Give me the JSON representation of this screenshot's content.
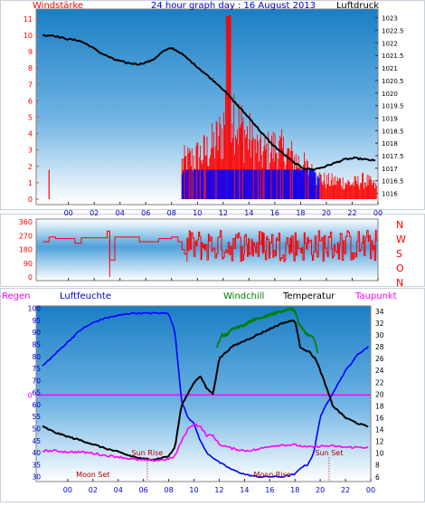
{
  "page": {
    "title": "24 hour graph day : 16 August 2013"
  },
  "colors": {
    "title_blue": "#0000cc",
    "red": "#ff0000",
    "blue": "#0000ff",
    "black": "#000000",
    "green": "#008000",
    "magenta": "#ff00ff",
    "moon_label": "#b00000",
    "plot_top": "#1a7ec4",
    "plot_bottom": "#ffffff",
    "frame": "#cfd8e3"
  },
  "chart_data": [
    {
      "type": "line",
      "title": "24 hour graph day : 16 August 2013",
      "left_axis_label": "Windstärke",
      "right_axis_label": "Luftdruck",
      "x_ticks": [
        "00",
        "02",
        "04",
        "06",
        "08",
        "10",
        "12",
        "14",
        "16",
        "18",
        "20",
        "22",
        "00"
      ],
      "x_range_hours": [
        -2.5,
        24
      ],
      "wind_ticks": [
        "0",
        "1",
        "2",
        "3",
        "4",
        "5",
        "6",
        "7",
        "8",
        "9",
        "10",
        "11"
      ],
      "wind_ylim": [
        0,
        11.6
      ],
      "pressure_ticks": [
        "1016",
        "1016.5",
        "1017",
        "1017.5",
        "1018",
        "1018.5",
        "1019",
        "1019.5",
        "1020",
        "1020.5",
        "1021",
        "1021.5",
        "1022",
        "1022.5",
        "1023"
      ],
      "pressure_ylim": [
        1015.55,
        1023.35
      ],
      "series": [
        {
          "key": "pressure",
          "color": "#000000",
          "x": [
            -2.0,
            -1.2,
            -0.5,
            0,
            0.8,
            1.6,
            2.5,
            3.5,
            4.5,
            5.5,
            6.5,
            7.3,
            8.0,
            8.7,
            9.4,
            10.2,
            11.0,
            11.8,
            12.6,
            13.4,
            14.2,
            15.0,
            15.8,
            16.6,
            17.4,
            18.2,
            19.0,
            19.8,
            20.6,
            21.4,
            22.2,
            23.0,
            23.8
          ],
          "y": [
            1022.3,
            1022.3,
            1022.2,
            1022.15,
            1022.1,
            1021.9,
            1021.6,
            1021.35,
            1021.2,
            1021.15,
            1021.3,
            1021.65,
            1021.8,
            1021.6,
            1021.3,
            1020.95,
            1020.6,
            1020.25,
            1019.8,
            1019.35,
            1018.9,
            1018.4,
            1017.95,
            1017.6,
            1017.25,
            1017.0,
            1016.95,
            1017.05,
            1017.2,
            1017.35,
            1017.4,
            1017.35,
            1017.3
          ]
        },
        {
          "key": "wind_spike",
          "color": "#ff0000",
          "x": [
            -1.5
          ],
          "y": [
            1.8
          ]
        }
      ],
      "red_bar_envelope": {
        "x": [
          8.8,
          10,
          11,
          12,
          12.4,
          13,
          14,
          15,
          16,
          17,
          18,
          19,
          20,
          21,
          22,
          23,
          23.9
        ],
        "y": [
          3.2,
          3.8,
          4.5,
          6,
          11,
          7,
          5.5,
          4,
          4.6,
          4,
          3.2,
          2.2,
          1.6,
          1.6,
          1.4,
          1.7,
          1.1
        ]
      },
      "blue_bar_envelope": {
        "x": [
          8.8,
          9,
          19,
          19.5,
          20,
          22.5,
          23.9
        ],
        "y": [
          1.5,
          1.8,
          1.8,
          1.2,
          0,
          0,
          0
        ]
      }
    },
    {
      "type": "line",
      "left_ticks": [
        "0",
        "90",
        "180",
        "270",
        "360"
      ],
      "ylim": [
        0,
        360
      ],
      "right_labels": [
        "N",
        "W",
        "S",
        "O",
        "N"
      ],
      "series": [
        {
          "key": "wind_direction",
          "color": "#ff0000",
          "x": [
            -2.0,
            -1.5,
            -1.0,
            0.0,
            0.5,
            1.0,
            1.5,
            2.5,
            3.0,
            3.2,
            3.6,
            4.5,
            5.5,
            6.5,
            7.0,
            7.5,
            8.0,
            8.5,
            8.8,
            9.0,
            9.2
          ],
          "y": [
            230,
            260,
            250,
            250,
            220,
            255,
            255,
            255,
            300,
            110,
            260,
            260,
            230,
            230,
            250,
            250,
            260,
            230,
            180,
            150,
            100
          ]
        }
      ]
    },
    {
      "type": "line",
      "labels": {
        "regen": "Regen",
        "luftfeuchte": "Luftfeuchte",
        "windchill": "Windchill",
        "temperatur": "Temperatur",
        "taupunkt": "Taupunkt"
      },
      "left_ticks": [
        "30",
        "35",
        "40",
        "45",
        "50",
        "55",
        "60",
        "65",
        "70",
        "75",
        "80",
        "85",
        "90",
        "95",
        "100"
      ],
      "left_ylim": [
        28,
        101
      ],
      "right_ticks": [
        "6",
        "8",
        "10",
        "12",
        "14",
        "16",
        "18",
        "20",
        "22",
        "24",
        "26",
        "28",
        "30",
        "32",
        "34"
      ],
      "right_ylim": [
        5.2,
        34.9
      ],
      "rain_value": "0",
      "rain_line_y": 64,
      "annotations": [
        {
          "text": "Moon Set",
          "x": 2.0,
          "y": 31
        },
        {
          "text": "Sun Rise",
          "x": 6.3,
          "y": 40
        },
        {
          "text": "Moon Rise",
          "x": 16.2,
          "y": 31
        },
        {
          "text": "Sun Set",
          "x": 20.7,
          "y": 40
        }
      ],
      "event_markers_x": [
        6.3,
        20.7
      ],
      "series": [
        {
          "key": "humidity",
          "color": "#0000ff",
          "axis": "left",
          "x": [
            -2.0,
            -1.0,
            0,
            1,
            2,
            3,
            4,
            5,
            6,
            7,
            8,
            8.5,
            9,
            9.5,
            10,
            10.5,
            11,
            12,
            13,
            14,
            15,
            16,
            17,
            18,
            18.5,
            19,
            19.5,
            20,
            20.5,
            21,
            22,
            23,
            23.8
          ],
          "y": [
            76,
            81,
            86,
            91,
            94,
            96,
            97,
            98,
            98,
            98,
            98,
            90,
            62,
            55,
            52,
            45,
            40,
            36,
            33,
            31,
            30,
            30,
            30,
            31,
            34,
            35,
            40,
            55,
            60,
            65,
            74,
            81,
            84
          ]
        },
        {
          "key": "windchill",
          "color": "#008000",
          "axis": "right",
          "x": [
            11.8,
            12.2,
            12.6,
            13,
            13.8,
            14.6,
            15.4,
            16.2,
            17,
            17.6,
            18,
            18.3,
            18.6,
            19,
            19.5,
            19.8
          ],
          "y": [
            28,
            30,
            30,
            31,
            31.5,
            32.5,
            33,
            33.5,
            34,
            34.5,
            34,
            32,
            31,
            30,
            29.5,
            27
          ]
        },
        {
          "key": "temperature",
          "color": "#000000",
          "axis": "right",
          "x": [
            -2.0,
            -1.0,
            0,
            1,
            2,
            3,
            4,
            5,
            6,
            7,
            8,
            8.5,
            9,
            9.5,
            10,
            10.5,
            11,
            11.5,
            12,
            13,
            14,
            15,
            16,
            17,
            18,
            18.4,
            18.8,
            19.2,
            19.6,
            20,
            20.5,
            21,
            22,
            23,
            23.8
          ],
          "y": [
            14.5,
            13.5,
            12.8,
            12.2,
            11.5,
            10.8,
            10.2,
            9.5,
            9,
            9,
            9.5,
            11,
            18,
            20,
            22,
            23,
            21,
            20,
            26,
            28,
            29,
            30,
            31,
            32,
            32.5,
            28,
            27.5,
            27,
            26,
            24,
            21,
            18,
            16,
            15,
            14.5
          ]
        },
        {
          "key": "dewpoint",
          "color": "#ff00ff",
          "axis": "right",
          "x": [
            -2.0,
            -1.0,
            0,
            1,
            2,
            3,
            4,
            5,
            6,
            7,
            8,
            8.5,
            9,
            9.5,
            10,
            10.5,
            11,
            11.5,
            12,
            13,
            14,
            15,
            16,
            17,
            18,
            19,
            20,
            21,
            22,
            23,
            23.8
          ],
          "y": [
            10.4,
            10.4,
            10.2,
            10.2,
            10,
            9.6,
            9.4,
            9,
            8.8,
            8.8,
            9,
            9.5,
            12,
            14,
            15,
            14.5,
            13,
            13,
            11.5,
            10.8,
            10.4,
            10.6,
            11.2,
            11.4,
            11.4,
            11,
            11.2,
            11.2,
            11,
            11,
            11
          ]
        }
      ]
    }
  ],
  "x_ticks_bottom": [
    "00",
    "02",
    "04",
    "06",
    "08",
    "10",
    "12",
    "14",
    "16",
    "18",
    "20",
    "22",
    "00"
  ]
}
